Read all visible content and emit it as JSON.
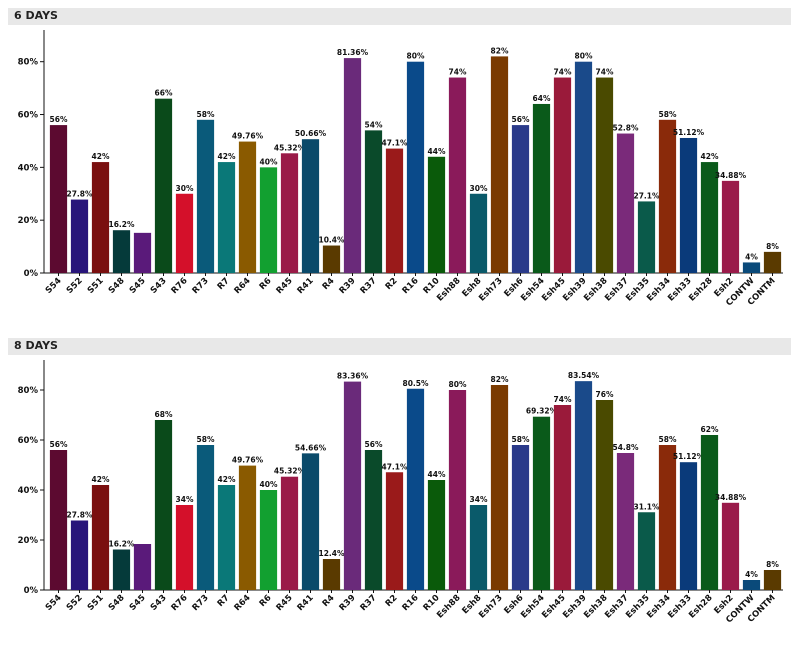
{
  "chart_data": [
    {
      "type": "bar",
      "title": "6 DAYS",
      "categories": [
        "S54",
        "S52",
        "S51",
        "S48",
        "S45",
        "S43",
        "R76",
        "R73",
        "R7",
        "R64",
        "R6",
        "R45",
        "R41",
        "R4",
        "R39",
        "R37",
        "R2",
        "R16",
        "R10",
        "Esh88",
        "Esh8",
        "Esh73",
        "Esh6",
        "Esh54",
        "Esh45",
        "Esh39",
        "Esh38",
        "Esh37",
        "Esh35",
        "Esh34",
        "Esh33",
        "Esh28",
        "Esh2",
        "CONTW",
        "CONTM"
      ],
      "values": [
        56,
        27.8,
        42,
        16.2,
        15.2,
        66,
        30,
        58,
        42,
        49.76,
        40,
        45.32,
        50.66,
        10.4,
        81.36,
        54,
        47.1,
        80,
        44,
        74,
        30,
        82,
        56,
        64,
        74,
        80,
        74,
        52.8,
        27.1,
        58,
        51.12,
        42,
        34.88,
        4,
        8
      ],
      "labels": [
        "56%",
        "27.8%",
        "42%",
        "16.2%",
        "",
        "66%",
        "30%",
        "58%",
        "42%",
        "49.76%",
        "40%",
        "45.32%",
        "50.66%",
        "10.4%",
        "81.36%",
        "54%",
        "47.1%",
        "80%",
        "44%",
        "74%",
        "30%",
        "82%",
        "56%",
        "64%",
        "74%",
        "80%",
        "74%",
        "52.8%",
        "27.1%",
        "58%",
        "51.12%",
        "42%",
        "34.88%",
        "4%",
        "8%"
      ],
      "yticks": [
        "0%",
        "20%",
        "40%",
        "60%",
        "80%"
      ],
      "ylim": [
        0,
        92
      ]
    },
    {
      "type": "bar",
      "title": "8 DAYS",
      "categories": [
        "S54",
        "S52",
        "S51",
        "S48",
        "S45",
        "S43",
        "R76",
        "R73",
        "R7",
        "R64",
        "R6",
        "R45",
        "R41",
        "R4",
        "R39",
        "R37",
        "R2",
        "R16",
        "R10",
        "Esh88",
        "Esh8",
        "Esh73",
        "Esh6",
        "Esh54",
        "Esh45",
        "Esh39",
        "Esh38",
        "Esh37",
        "Esh35",
        "Esh34",
        "Esh33",
        "Esh28",
        "Esh2",
        "CONTW",
        "CONTM"
      ],
      "values": [
        56,
        27.8,
        42,
        16.2,
        18.4,
        68,
        34,
        58,
        42,
        49.76,
        40,
        45.32,
        54.66,
        12.4,
        83.36,
        56,
        47.1,
        80.5,
        44,
        80,
        34,
        82,
        58,
        69.32,
        74,
        83.54,
        76,
        54.8,
        31.1,
        58,
        51.12,
        62,
        34.88,
        4,
        8
      ],
      "labels": [
        "56%",
        "27.8%",
        "42%",
        "16.2%",
        "",
        "68%",
        "34%",
        "58%",
        "42%",
        "49.76%",
        "40%",
        "45.32%",
        "54.66%",
        "12.4%",
        "83.36%",
        "56%",
        "47.1%",
        "80.5%",
        "44%",
        "80%",
        "34%",
        "82%",
        "58%",
        "69.32%",
        "74%",
        "83.54%",
        "76%",
        "54.8%",
        "31.1%",
        "58%",
        "51.12%",
        "62%",
        "34.88%",
        "4%",
        "8%"
      ],
      "yticks": [
        "0%",
        "20%",
        "40%",
        "60%",
        "80%"
      ],
      "ylim": [
        0,
        92
      ]
    }
  ],
  "colors": [
    "#5c0a30",
    "#28157a",
    "#7a0f0f",
    "#053a3a",
    "#5a1a7a",
    "#0a4a1a",
    "#d4102a",
    "#0a5a7a",
    "#0a7878",
    "#8a5a00",
    "#12a030",
    "#9a1a48",
    "#0a4a6a",
    "#5a3a00",
    "#6a2a7a",
    "#0a4a2a",
    "#9a1a1a",
    "#0a4a8a",
    "#0a5a0a",
    "#8a1a5a",
    "#0a5a6a",
    "#7a3a00",
    "#2a3a8a",
    "#0a5a1a",
    "#9a1a3a",
    "#1a4a8a",
    "#4a4a00",
    "#7a2a7a",
    "#0a5a4a",
    "#8a2a0a",
    "#0a3a7a",
    "#0a5a1a",
    "#9a1a4a",
    "#0a4a7a",
    "#5a3a00"
  ]
}
